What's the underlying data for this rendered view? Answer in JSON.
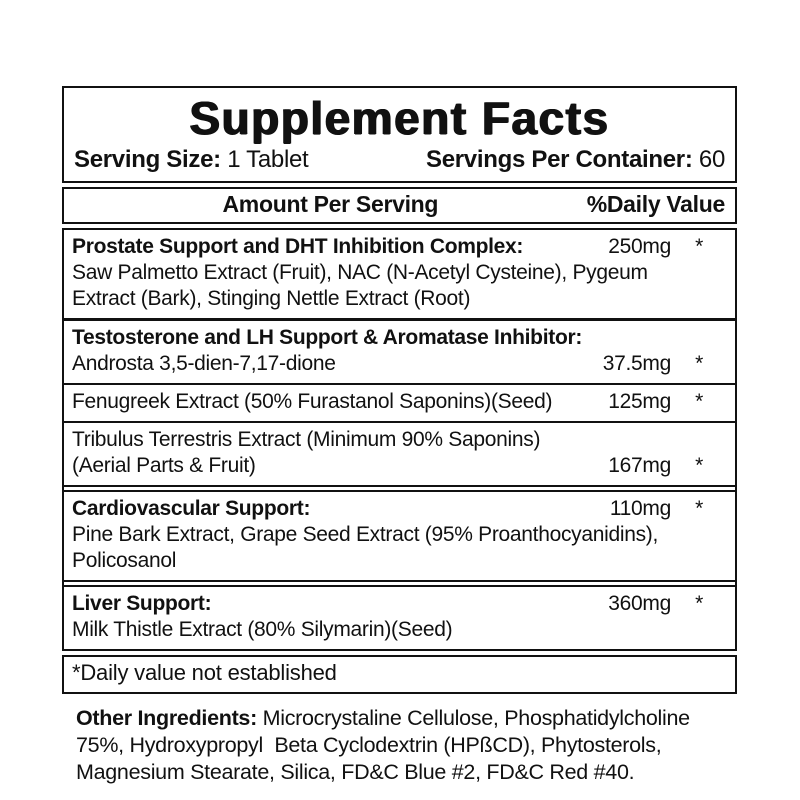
{
  "colors": {
    "text": "#111111",
    "border": "#111111",
    "background": "#ffffff"
  },
  "label": {
    "title": "Supplement Facts",
    "serving": {
      "size_label": "Serving Size:",
      "size_value": " 1 Tablet",
      "container_label": "Servings Per Container:",
      "container_value": " 60"
    },
    "columns": {
      "amount_header": "Amount Per Serving",
      "daily_value_header": "%Daily Value"
    },
    "rows": [
      {
        "name": "Prostate Support and DHT Inhibition Complex:",
        "amount": "250mg",
        "dv": "*",
        "desc1": "Saw Palmetto Extract (Fruit), NAC (N-Acetyl Cysteine), Pygeum",
        "desc2": "Extract (Bark), Stinging Nettle Extract (Root)"
      },
      {
        "name": "Testosterone and LH Support & Aromatase Inhibitor:",
        "sub": "Androsta 3,5-dien-7,17-dione",
        "amount": "37.5mg",
        "dv": "*"
      },
      {
        "name": "Fenugreek Extract (50% Furastanol Saponins)(Seed)",
        "amount": "125mg",
        "dv": "*"
      },
      {
        "name": "Tribulus Terrestris Extract (Minimum 90% Saponins)",
        "sub": "(Aerial Parts & Fruit)",
        "amount": "167mg",
        "dv": "*"
      },
      {
        "name": "Cardiovascular Support:",
        "amount": "110mg",
        "dv": "*",
        "desc1": "Pine Bark Extract, Grape Seed Extract (95% Proanthocyanidins),",
        "desc2": "Policosanol"
      },
      {
        "name": "Liver Support:",
        "amount": "360mg",
        "dv": "*",
        "desc1": "Milk Thistle Extract (80% Silymarin)(Seed)"
      }
    ],
    "footnote": "*Daily value not established",
    "other_ingredients": {
      "label": "Other Ingredients:",
      "line1_rest": " Microcrystaline Cellulose, Phosphatidylcholine",
      "line2": "75%, Hydroxypropyl  Beta Cyclodextrin (HPßCD), Phytosterols,",
      "line3": "Magnesium Stearate, Silica, FD&C Blue #2, FD&C Red #40."
    }
  }
}
